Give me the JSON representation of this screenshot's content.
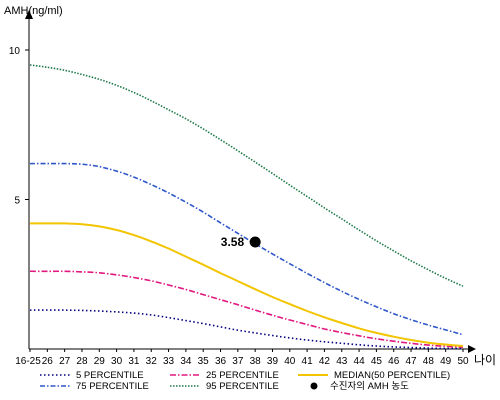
{
  "chart_data": {
    "type": "line",
    "ylabel": "AMH(ng/ml)",
    "xlabel": "나이",
    "categories": [
      "16-25",
      "26",
      "27",
      "28",
      "29",
      "30",
      "31",
      "32",
      "33",
      "34",
      "35",
      "36",
      "37",
      "38",
      "39",
      "40",
      "41",
      "42",
      "43",
      "44",
      "45",
      "46",
      "47",
      "48",
      "49",
      "50"
    ],
    "yticks": [
      5,
      10
    ],
    "ylim": [
      0,
      11
    ],
    "series": [
      {
        "name": "5 PERCENTILE",
        "color": "#000080",
        "dash": "1.5,2.5",
        "values": [
          1.3,
          1.3,
          1.3,
          1.29,
          1.27,
          1.24,
          1.2,
          1.14,
          1.05,
          0.95,
          0.85,
          0.74,
          0.63,
          0.54,
          0.45,
          0.37,
          0.3,
          0.24,
          0.19,
          0.14,
          0.1,
          0.07,
          0.05,
          0.03,
          0.02,
          0.02
        ]
      },
      {
        "name": "25 PERCENTILE",
        "color": "#e0187f",
        "dash": "6,2,1.5,2",
        "values": [
          2.6,
          2.6,
          2.6,
          2.58,
          2.55,
          2.48,
          2.39,
          2.28,
          2.14,
          1.99,
          1.82,
          1.65,
          1.48,
          1.3,
          1.13,
          0.97,
          0.82,
          0.67,
          0.55,
          0.44,
          0.34,
          0.26,
          0.19,
          0.13,
          0.09,
          0.06
        ]
      },
      {
        "name": "MEDIAN(50 PERCENTILE)",
        "color": "#f2c500",
        "dash": "",
        "values": [
          4.2,
          4.2,
          4.2,
          4.17,
          4.1,
          3.98,
          3.81,
          3.6,
          3.36,
          3.09,
          2.82,
          2.54,
          2.27,
          2.0,
          1.74,
          1.5,
          1.27,
          1.06,
          0.87,
          0.69,
          0.54,
          0.41,
          0.3,
          0.21,
          0.15,
          0.1
        ]
      },
      {
        "name": "75 PERCENTILE",
        "color": "#2f57c8",
        "dash": "5,2,1.5,2",
        "values": [
          6.2,
          6.2,
          6.2,
          6.18,
          6.1,
          5.95,
          5.75,
          5.5,
          5.22,
          4.91,
          4.58,
          4.22,
          3.87,
          3.52,
          3.18,
          2.85,
          2.53,
          2.22,
          1.93,
          1.66,
          1.41,
          1.18,
          0.98,
          0.8,
          0.64,
          0.48
        ]
      },
      {
        "name": "95 PERCENTILE",
        "color": "#1f7a4a",
        "dash": "1.5,1.5",
        "values": [
          9.5,
          9.42,
          9.32,
          9.18,
          9.02,
          8.82,
          8.58,
          8.3,
          8.0,
          7.7,
          7.36,
          7.0,
          6.63,
          6.25,
          5.87,
          5.48,
          5.1,
          4.72,
          4.35,
          3.98,
          3.62,
          3.28,
          2.95,
          2.65,
          2.36,
          2.1
        ]
      }
    ],
    "point": {
      "x": "38",
      "y": 3.58,
      "label": "3.58",
      "legend": "수진자의 AMH 농도"
    }
  }
}
